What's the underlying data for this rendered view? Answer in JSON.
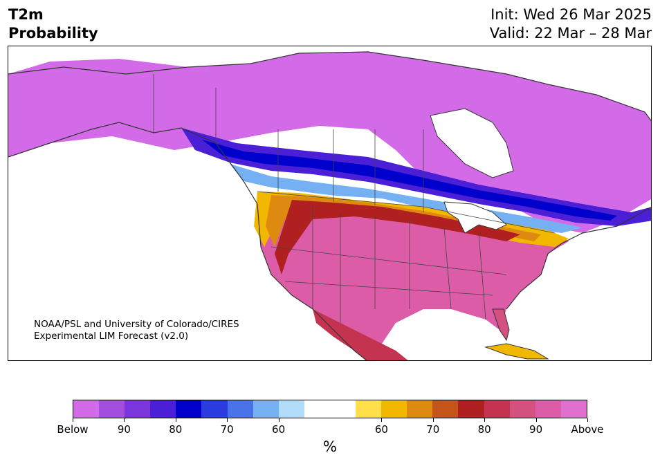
{
  "header": {
    "variable": "T2m",
    "product": "Probability",
    "init": "Init: Wed 26 Mar 2025",
    "valid": "Valid: 22 Mar – 28 Mar"
  },
  "credit": {
    "line1": "NOAA/PSL and University of Colorado/CIRES",
    "line2": "Experimental LIM Forecast (v2.0)"
  },
  "colorbar": {
    "colors": [
      "#d36be8",
      "#a24fe0",
      "#7a36dc",
      "#4a1fd6",
      "#0000cc",
      "#2a3ce0",
      "#4a72e8",
      "#74b0f2",
      "#b0dcfa",
      "#ffffff",
      "#ffffff",
      "#ffe04a",
      "#f2b800",
      "#de8a10",
      "#c4541a",
      "#b02020",
      "#c43450",
      "#d45080",
      "#dc5ca8",
      "#e070d0"
    ],
    "tick_labels": [
      "Below",
      "90",
      "80",
      "70",
      "60",
      "60",
      "70",
      "80",
      "90",
      "Above"
    ],
    "unit": "%"
  },
  "map": {
    "legend_colors": {
      "below_extreme": "#d36be8",
      "below_strong": "#0000cc",
      "below_weak": "#b0dcfa",
      "above_weak": "#ffe04a",
      "above_strong": "#b02020",
      "above_extreme": "#e070d0"
    }
  }
}
